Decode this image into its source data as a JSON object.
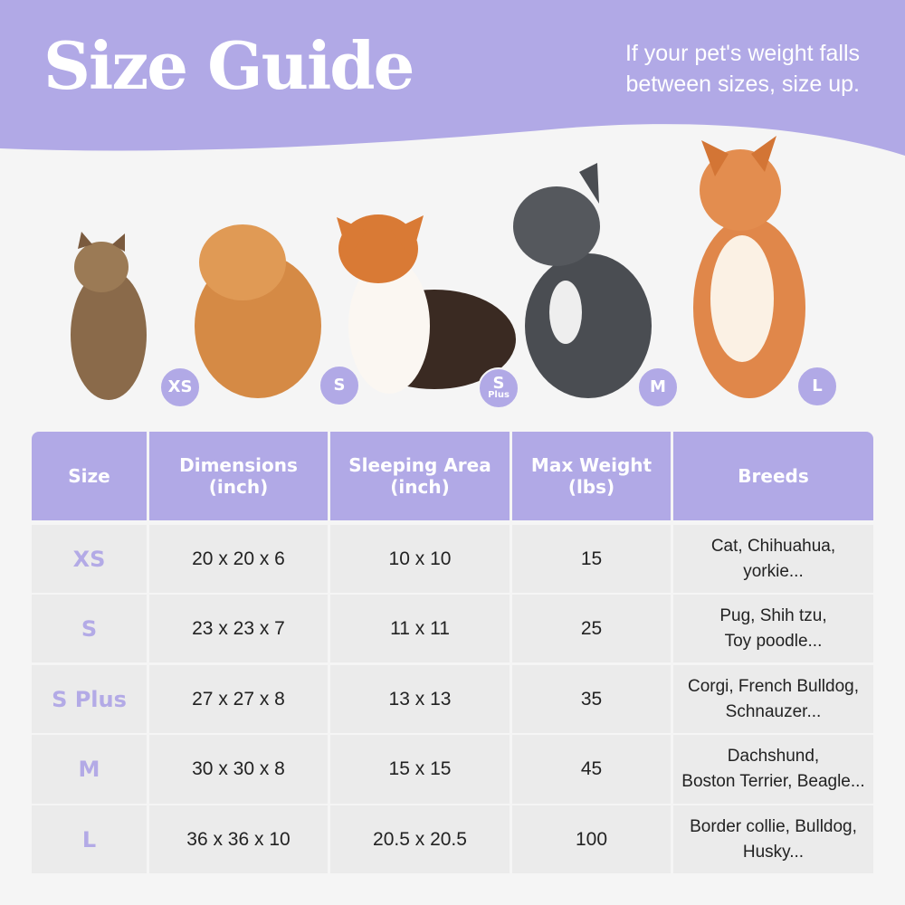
{
  "header": {
    "title": "Size Guide",
    "note": "If your pet's weight falls between sizes, size up."
  },
  "colors": {
    "accent": "#b1a9e6",
    "background": "#f5f5f5",
    "cell": "#ebebeb"
  },
  "pets": [
    {
      "animal": "cat",
      "badge": "XS"
    },
    {
      "animal": "pomeranian",
      "badge": "S"
    },
    {
      "animal": "corgi",
      "badge": "S",
      "badge_sub": "Plus"
    },
    {
      "animal": "french-bulldog",
      "badge": "M"
    },
    {
      "animal": "shiba-inu",
      "badge": "L"
    }
  ],
  "table": {
    "headers": [
      "Size",
      "Dimensions\n(inch)",
      "Sleeping Area\n(inch)",
      "Max Weight\n(lbs)",
      "Breeds"
    ],
    "rows": [
      [
        "XS",
        "20 x 20 x 6",
        "10 x 10",
        "15",
        "Cat, Chihuahua,\nyorkie..."
      ],
      [
        "S",
        "23 x 23 x 7",
        "11 x 11",
        "25",
        "Pug, Shih tzu,\nToy poodle..."
      ],
      [
        "S Plus",
        "27 x 27 x 8",
        "13 x 13",
        "35",
        "Corgi, French Bulldog,\nSchnauzer..."
      ],
      [
        "M",
        "30 x 30 x 8",
        "15 x 15",
        "45",
        "Dachshund,\nBoston Terrier, Beagle..."
      ],
      [
        "L",
        "36 x 36 x 10",
        "20.5 x 20.5",
        "100",
        "Border collie, Bulldog,\nHusky..."
      ]
    ]
  }
}
